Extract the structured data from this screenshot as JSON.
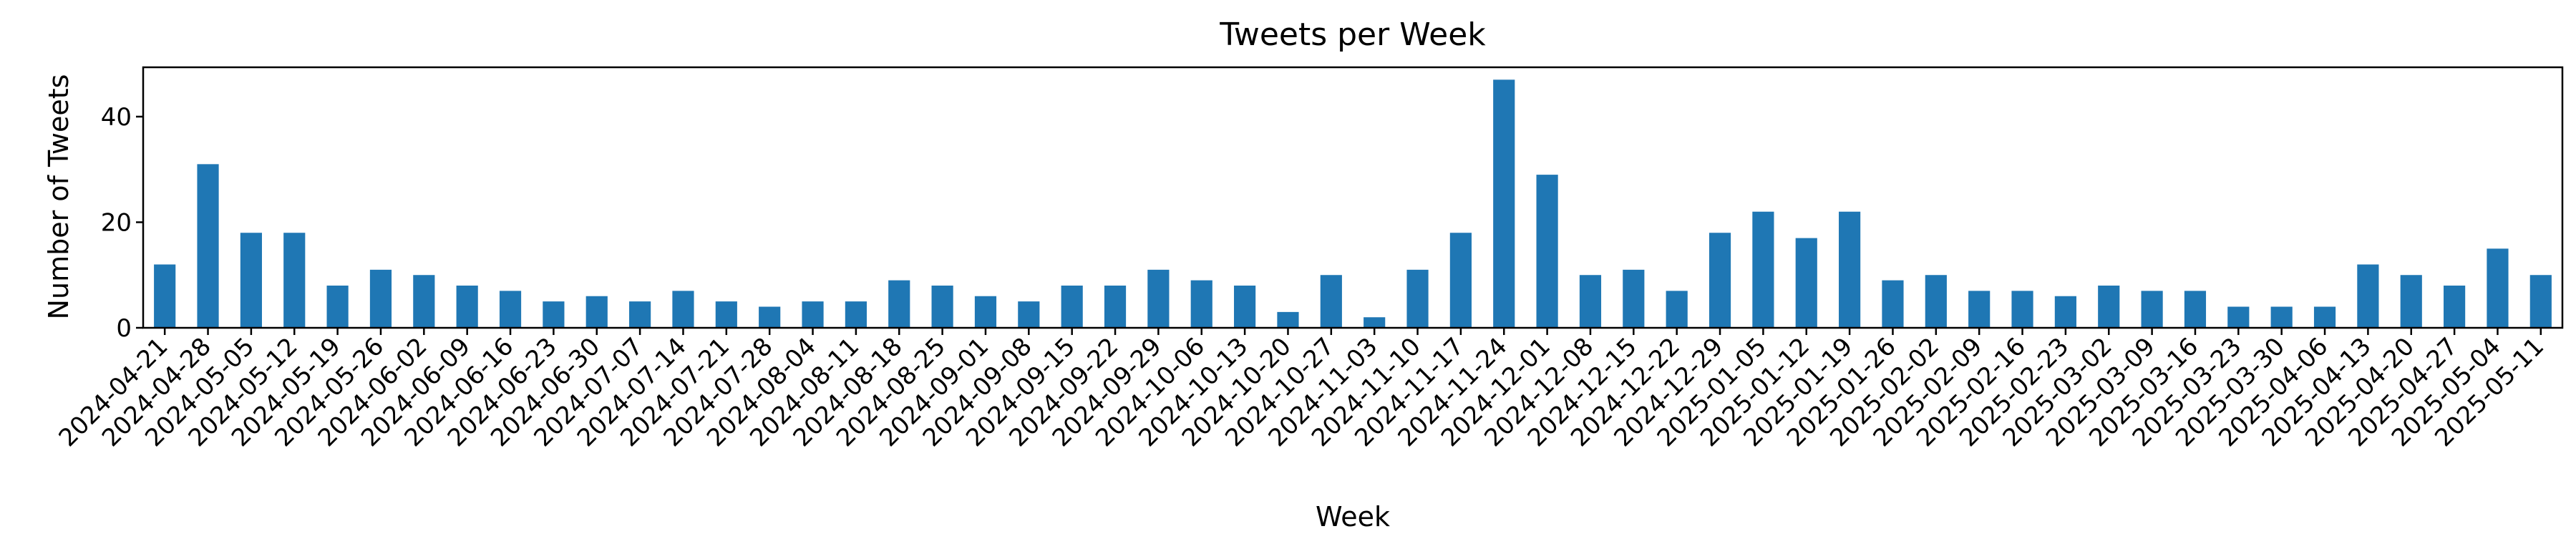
{
  "chart_data": {
    "type": "bar",
    "title": "Tweets per Week",
    "xlabel": "Week",
    "ylabel": "Number of Tweets",
    "ylim": [
      0,
      49.35
    ],
    "yticks": [
      0,
      20,
      40
    ],
    "grid": false,
    "legend": "none",
    "bar_color": "#1f77b4",
    "categories": [
      "2024-04-21",
      "2024-04-28",
      "2024-05-05",
      "2024-05-12",
      "2024-05-19",
      "2024-05-26",
      "2024-06-02",
      "2024-06-09",
      "2024-06-16",
      "2024-06-23",
      "2024-06-30",
      "2024-07-07",
      "2024-07-14",
      "2024-07-21",
      "2024-07-28",
      "2024-08-04",
      "2024-08-11",
      "2024-08-18",
      "2024-08-25",
      "2024-09-01",
      "2024-09-08",
      "2024-09-15",
      "2024-09-22",
      "2024-09-29",
      "2024-10-06",
      "2024-10-13",
      "2024-10-20",
      "2024-10-27",
      "2024-11-03",
      "2024-11-10",
      "2024-11-17",
      "2024-11-24",
      "2024-12-01",
      "2024-12-08",
      "2024-12-15",
      "2024-12-22",
      "2024-12-29",
      "2025-01-05",
      "2025-01-12",
      "2025-01-19",
      "2025-01-26",
      "2025-02-02",
      "2025-02-09",
      "2025-02-16",
      "2025-02-23",
      "2025-03-02",
      "2025-03-09",
      "2025-03-16",
      "2025-03-23",
      "2025-03-30",
      "2025-04-06",
      "2025-04-13",
      "2025-04-20",
      "2025-04-27",
      "2025-05-04",
      "2025-05-11"
    ],
    "values": [
      12,
      31,
      18,
      18,
      8,
      11,
      10,
      8,
      7,
      5,
      6,
      5,
      7,
      5,
      4,
      5,
      5,
      9,
      8,
      6,
      5,
      8,
      8,
      11,
      9,
      8,
      3,
      10,
      2,
      11,
      18,
      47,
      29,
      10,
      11,
      7,
      18,
      22,
      17,
      22,
      9,
      10,
      7,
      7,
      6,
      8,
      7,
      7,
      4,
      4,
      4,
      12,
      10,
      8,
      15,
      10
    ]
  }
}
